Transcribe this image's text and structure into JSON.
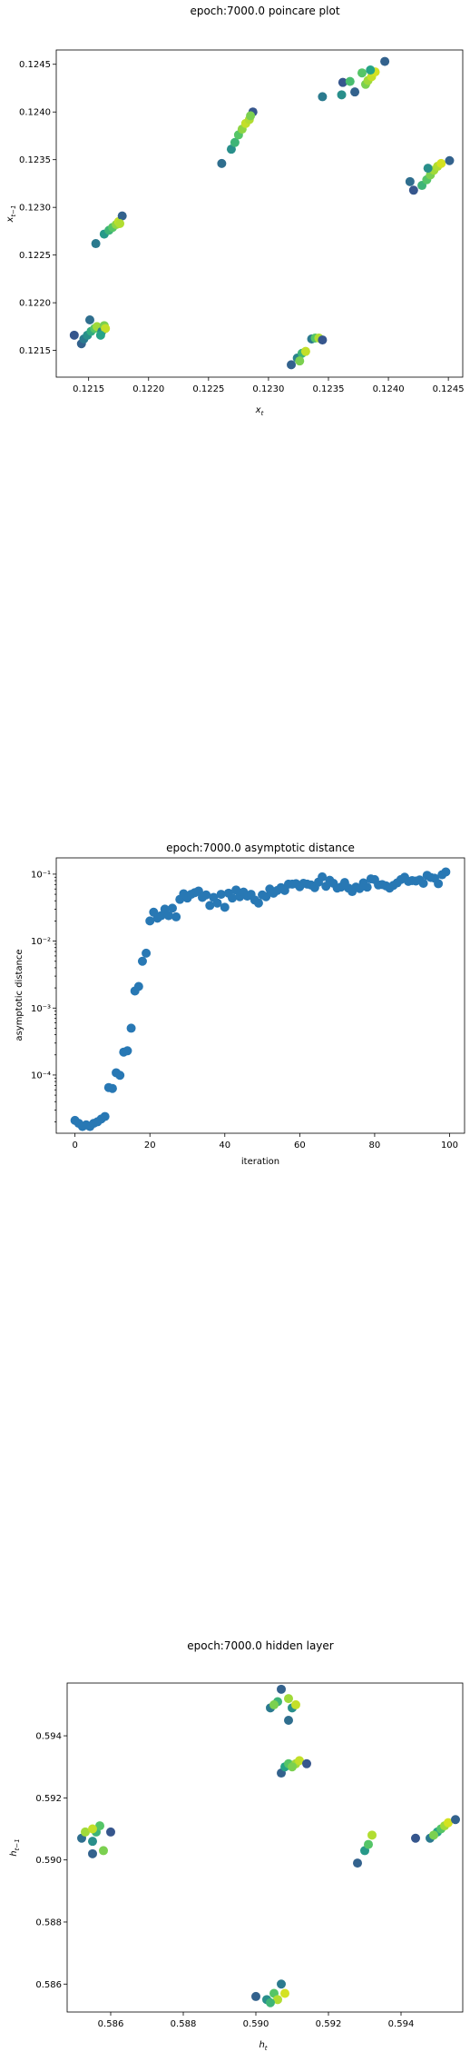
{
  "chart_data": [
    {
      "type": "scatter",
      "title": "epoch:7000.0 poincare plot",
      "xlabel": "x_t",
      "ylabel": "x_{t-1}",
      "xlim": [
        0.12123,
        0.12462
      ],
      "ylim": [
        0.12122,
        0.12465
      ],
      "xticks": [
        0.1215,
        0.122,
        0.1225,
        0.123,
        0.1235,
        0.124,
        0.1245
      ],
      "xtick_labels": [
        "0.1215",
        "0.1220",
        "0.1225",
        "0.1230",
        "0.1235",
        "0.1240",
        "0.1245"
      ],
      "yticks": [
        0.1215,
        0.122,
        0.1225,
        0.123,
        0.1235,
        0.124,
        0.1245
      ],
      "ytick_labels": [
        "0.1215",
        "0.1220",
        "0.1225",
        "0.1230",
        "0.1235",
        "0.1240",
        "0.1245"
      ],
      "colormap": [
        "#3a4a8c",
        "#2b7a8e",
        "#26a387",
        "#55c567",
        "#a0da39",
        "#e5e419"
      ],
      "points": [
        [
          0.12138,
          0.12166,
          0.05
        ],
        [
          0.12144,
          0.12157,
          0.1
        ],
        [
          0.12146,
          0.12162,
          0.2
        ],
        [
          0.12149,
          0.12166,
          0.3
        ],
        [
          0.12152,
          0.1217,
          0.45
        ],
        [
          0.12155,
          0.12173,
          0.6
        ],
        [
          0.12157,
          0.12175,
          0.8
        ],
        [
          0.12151,
          0.12182,
          0.15
        ],
        [
          0.12161,
          0.1217,
          0.25
        ],
        [
          0.12163,
          0.12176,
          0.7
        ],
        [
          0.12164,
          0.12173,
          0.9
        ],
        [
          0.1216,
          0.12166,
          0.4
        ],
        [
          0.12156,
          0.12262,
          0.2
        ],
        [
          0.12163,
          0.12272,
          0.35
        ],
        [
          0.12167,
          0.12276,
          0.5
        ],
        [
          0.1217,
          0.12279,
          0.6
        ],
        [
          0.12173,
          0.12282,
          0.75
        ],
        [
          0.12175,
          0.12285,
          0.9
        ],
        [
          0.12178,
          0.12291,
          0.1
        ],
        [
          0.12176,
          0.12283,
          0.85
        ],
        [
          0.12261,
          0.12346,
          0.15
        ],
        [
          0.12269,
          0.12361,
          0.3
        ],
        [
          0.12272,
          0.12368,
          0.5
        ],
        [
          0.12275,
          0.12376,
          0.6
        ],
        [
          0.12278,
          0.12382,
          0.75
        ],
        [
          0.12281,
          0.12388,
          0.9
        ],
        [
          0.12284,
          0.12392,
          0.85
        ],
        [
          0.12287,
          0.124,
          0.05
        ],
        [
          0.12285,
          0.12396,
          0.7
        ],
        [
          0.12319,
          0.12135,
          0.1
        ],
        [
          0.12324,
          0.12142,
          0.25
        ],
        [
          0.12328,
          0.12147,
          0.5
        ],
        [
          0.12331,
          0.12149,
          0.9
        ],
        [
          0.12336,
          0.12162,
          0.2
        ],
        [
          0.12339,
          0.12163,
          0.6
        ],
        [
          0.12342,
          0.12163,
          0.85
        ],
        [
          0.12345,
          0.12161,
          0.05
        ],
        [
          0.12326,
          0.12139,
          0.7
        ],
        [
          0.12345,
          0.12416,
          0.2
        ],
        [
          0.12361,
          0.12418,
          0.3
        ],
        [
          0.12362,
          0.12431,
          0.05
        ],
        [
          0.12368,
          0.12432,
          0.55
        ],
        [
          0.12372,
          0.12421,
          0.1
        ],
        [
          0.12378,
          0.12441,
          0.6
        ],
        [
          0.12381,
          0.12429,
          0.7
        ],
        [
          0.12383,
          0.12433,
          0.8
        ],
        [
          0.12386,
          0.12437,
          0.9
        ],
        [
          0.12389,
          0.12442,
          0.95
        ],
        [
          0.12397,
          0.12453,
          0.1
        ],
        [
          0.12385,
          0.12444,
          0.4
        ],
        [
          0.12418,
          0.12327,
          0.15
        ],
        [
          0.12421,
          0.12318,
          0.05
        ],
        [
          0.12428,
          0.12323,
          0.5
        ],
        [
          0.12432,
          0.12329,
          0.6
        ],
        [
          0.12435,
          0.12334,
          0.7
        ],
        [
          0.12438,
          0.12339,
          0.8
        ],
        [
          0.12441,
          0.12343,
          0.85
        ],
        [
          0.12444,
          0.12346,
          0.95
        ],
        [
          0.12451,
          0.12349,
          0.1
        ],
        [
          0.12433,
          0.12341,
          0.3
        ]
      ]
    },
    {
      "type": "scatter",
      "title": "epoch:7000.0 asymptotic distance",
      "xlabel": "iteration",
      "ylabel": "asymptotic distance",
      "yscale": "log",
      "xlim": [
        -5,
        104
      ],
      "ylim": [
        1.35e-05,
        0.175
      ],
      "xticks": [
        0,
        20,
        40,
        60,
        80,
        100
      ],
      "xtick_labels": [
        "0",
        "20",
        "40",
        "60",
        "80",
        "100"
      ],
      "yticks": [
        0.0001,
        0.001,
        0.01,
        0.1
      ],
      "ytick_labels": [
        "10⁻⁴",
        "10⁻³",
        "10⁻²",
        "10⁻¹"
      ],
      "color": "#2878b4",
      "x": [
        0,
        1,
        2,
        3,
        4,
        5,
        6,
        7,
        8,
        9,
        10,
        11,
        12,
        13,
        14,
        15,
        16,
        17,
        18,
        19,
        20,
        21,
        22,
        23,
        24,
        25,
        26,
        27,
        28,
        29,
        30,
        31,
        32,
        33,
        34,
        35,
        36,
        37,
        38,
        39,
        40,
        41,
        42,
        43,
        44,
        45,
        46,
        47,
        48,
        49,
        50,
        51,
        52,
        53,
        54,
        55,
        56,
        57,
        58,
        59,
        60,
        61,
        62,
        63,
        64,
        65,
        66,
        67,
        68,
        69,
        70,
        71,
        72,
        73,
        74,
        75,
        76,
        77,
        78,
        79,
        80,
        81,
        82,
        83,
        84,
        85,
        86,
        87,
        88,
        89,
        90,
        91,
        92,
        93,
        94,
        95,
        96,
        97,
        98,
        99
      ],
      "y": [
        2.1e-05,
        1.9e-05,
        1.7e-05,
        1.8e-05,
        1.7e-05,
        1.9e-05,
        2e-05,
        2.2e-05,
        2.4e-05,
        6.5e-05,
        6.3e-05,
        0.000108,
        9.9e-05,
        0.00022,
        0.00023,
        0.0005,
        0.0018,
        0.0021,
        0.005,
        0.0066,
        0.02,
        0.027,
        0.022,
        0.024,
        0.03,
        0.024,
        0.031,
        0.023,
        0.042,
        0.051,
        0.044,
        0.05,
        0.053,
        0.056,
        0.045,
        0.049,
        0.034,
        0.045,
        0.037,
        0.05,
        0.032,
        0.052,
        0.044,
        0.058,
        0.046,
        0.054,
        0.047,
        0.05,
        0.041,
        0.037,
        0.049,
        0.046,
        0.06,
        0.052,
        0.057,
        0.063,
        0.057,
        0.071,
        0.071,
        0.072,
        0.065,
        0.073,
        0.071,
        0.069,
        0.063,
        0.076,
        0.091,
        0.066,
        0.081,
        0.073,
        0.062,
        0.064,
        0.075,
        0.062,
        0.055,
        0.064,
        0.061,
        0.074,
        0.064,
        0.085,
        0.083,
        0.069,
        0.07,
        0.067,
        0.062,
        0.068,
        0.074,
        0.083,
        0.09,
        0.078,
        0.08,
        0.079,
        0.082,
        0.073,
        0.096,
        0.089,
        0.087,
        0.072,
        0.098,
        0.108
      ]
    },
    {
      "type": "scatter",
      "title": "epoch:7000.0 hidden layer",
      "xlabel": "h_t",
      "ylabel": "h_{t-1}",
      "xlim": [
        0.5848,
        0.5957
      ],
      "ylim": [
        0.5851,
        0.5957
      ],
      "xticks": [
        0.586,
        0.588,
        0.59,
        0.592,
        0.594
      ],
      "xtick_labels": [
        "0.586",
        "0.588",
        "0.590",
        "0.592",
        "0.594"
      ],
      "yticks": [
        0.586,
        0.588,
        0.59,
        0.592,
        0.594
      ],
      "ytick_labels": [
        "0.586",
        "0.588",
        "0.590",
        "0.592",
        "0.594"
      ],
      "colormap": [
        "#3a4a8c",
        "#2b7a8e",
        "#26a387",
        "#55c567",
        "#a0da39",
        "#e5e419"
      ],
      "points": [
        [
          0.5852,
          0.5907,
          0.15
        ],
        [
          0.5855,
          0.5902,
          0.1
        ],
        [
          0.5855,
          0.5906,
          0.3
        ],
        [
          0.5856,
          0.5909,
          0.5
        ],
        [
          0.5857,
          0.5911,
          0.6
        ],
        [
          0.5858,
          0.5903,
          0.7
        ],
        [
          0.5853,
          0.5909,
          0.8
        ],
        [
          0.5855,
          0.591,
          0.9
        ],
        [
          0.586,
          0.5909,
          0.05
        ],
        [
          0.59,
          0.5856,
          0.1
        ],
        [
          0.5903,
          0.5855,
          0.3
        ],
        [
          0.5905,
          0.5857,
          0.6
        ],
        [
          0.5906,
          0.5855,
          0.85
        ],
        [
          0.5908,
          0.5857,
          0.95
        ],
        [
          0.5907,
          0.586,
          0.2
        ],
        [
          0.5904,
          0.5854,
          0.5
        ],
        [
          0.5904,
          0.5949,
          0.2
        ],
        [
          0.5906,
          0.5951,
          0.5
        ],
        [
          0.5907,
          0.5955,
          0.1
        ],
        [
          0.5909,
          0.5952,
          0.8
        ],
        [
          0.591,
          0.5949,
          0.3
        ],
        [
          0.5911,
          0.595,
          0.9
        ],
        [
          0.5909,
          0.5945,
          0.15
        ],
        [
          0.5905,
          0.595,
          0.7
        ],
        [
          0.5907,
          0.5928,
          0.1
        ],
        [
          0.5908,
          0.593,
          0.4
        ],
        [
          0.5909,
          0.5931,
          0.6
        ],
        [
          0.5911,
          0.5931,
          0.8
        ],
        [
          0.5912,
          0.5932,
          0.9
        ],
        [
          0.5914,
          0.5931,
          0.05
        ],
        [
          0.591,
          0.593,
          0.7
        ],
        [
          0.5928,
          0.5899,
          0.1
        ],
        [
          0.593,
          0.5903,
          0.35
        ],
        [
          0.5931,
          0.5905,
          0.6
        ],
        [
          0.5932,
          0.5908,
          0.85
        ],
        [
          0.5944,
          0.5907,
          0.05
        ],
        [
          0.5948,
          0.5907,
          0.2
        ],
        [
          0.595,
          0.5909,
          0.4
        ],
        [
          0.5951,
          0.591,
          0.6
        ],
        [
          0.5952,
          0.5911,
          0.8
        ],
        [
          0.5953,
          0.5912,
          0.95
        ],
        [
          0.5955,
          0.5913,
          0.1
        ],
        [
          0.5949,
          0.5908,
          0.7
        ]
      ]
    }
  ]
}
